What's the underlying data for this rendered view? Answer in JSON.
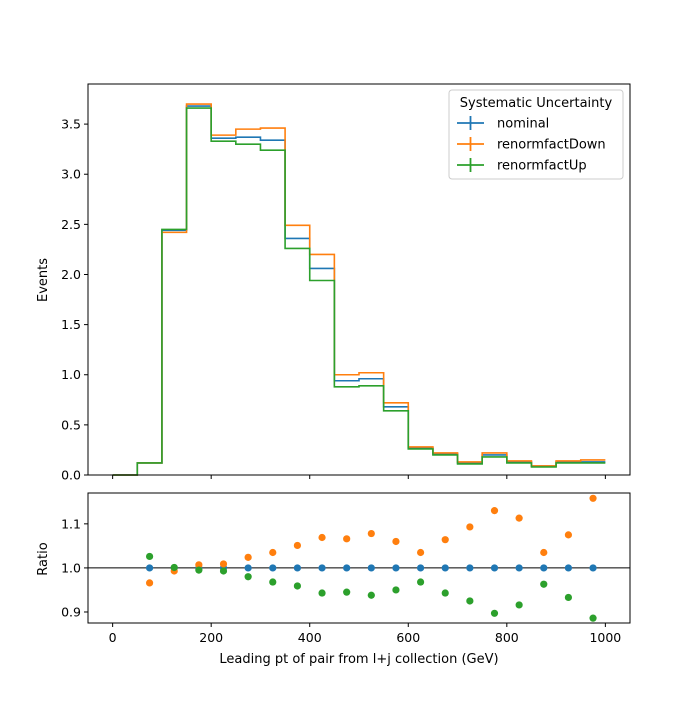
{
  "chart_data": [
    {
      "type": "line",
      "style": "step histogram",
      "xlabel": "",
      "ylabel": "Events",
      "xlim": [
        -50,
        1050
      ],
      "ylim": [
        0,
        3.9
      ],
      "x_ticks": [
        0,
        200,
        400,
        600,
        800,
        1000
      ],
      "y_ticks": [
        "0.0",
        "0.5",
        "1.0",
        "1.5",
        "2.0",
        "2.5",
        "3.0",
        "3.5"
      ],
      "grid": false,
      "legend": {
        "title": "Systematic Uncertainty",
        "placement": "top-right"
      },
      "bin_edges": [
        0,
        50,
        100,
        150,
        200,
        250,
        300,
        350,
        400,
        450,
        500,
        550,
        600,
        650,
        700,
        750,
        800,
        850,
        900,
        950,
        1000
      ],
      "series": [
        {
          "name": "nominal",
          "color": "#1f77b4",
          "values": [
            0.0,
            0.12,
            2.44,
            3.68,
            3.36,
            3.37,
            3.34,
            2.36,
            2.06,
            0.94,
            0.96,
            0.68,
            0.27,
            0.21,
            0.12,
            0.2,
            0.13,
            0.09,
            0.13,
            0.13
          ]
        },
        {
          "name": "renormfactDown",
          "color": "#ff7f0e",
          "values": [
            0.0,
            0.12,
            2.42,
            3.7,
            3.39,
            3.45,
            3.46,
            2.49,
            2.2,
            1.0,
            1.02,
            0.72,
            0.28,
            0.22,
            0.13,
            0.22,
            0.14,
            0.09,
            0.14,
            0.15
          ]
        },
        {
          "name": "renormfactUp",
          "color": "#2ca02c",
          "values": [
            0.0,
            0.12,
            2.45,
            3.66,
            3.33,
            3.3,
            3.24,
            2.26,
            1.94,
            0.88,
            0.89,
            0.64,
            0.26,
            0.2,
            0.11,
            0.18,
            0.12,
            0.08,
            0.12,
            0.12
          ]
        }
      ]
    },
    {
      "type": "scatter",
      "xlabel": "Leading pt of pair from l+j collection (GeV)",
      "ylabel": "Ratio",
      "xlim": [
        -50,
        1050
      ],
      "ylim": [
        0.875,
        1.17
      ],
      "x_ticks": [
        0,
        200,
        400,
        600,
        800,
        1000
      ],
      "y_ticks": [
        "0.9",
        "1.0",
        "1.1"
      ],
      "reference_line": 1.0,
      "grid": false,
      "x": [
        75,
        125,
        175,
        225,
        275,
        325,
        375,
        425,
        475,
        525,
        575,
        625,
        675,
        725,
        775,
        825,
        875,
        925,
        975
      ],
      "series": [
        {
          "name": "nominal",
          "color": "#1f77b4",
          "values": [
            1.0,
            1.0,
            1.0,
            1.0,
            1.0,
            1.0,
            1.0,
            1.0,
            1.0,
            1.0,
            1.0,
            1.0,
            1.0,
            1.0,
            1.0,
            1.0,
            1.0,
            1.0,
            1.0
          ]
        },
        {
          "name": "renormfactDown",
          "color": "#ff7f0e",
          "values": [
            0.966,
            0.993,
            1.007,
            1.009,
            1.024,
            1.035,
            1.051,
            1.069,
            1.066,
            1.078,
            1.06,
            1.035,
            1.064,
            1.093,
            1.13,
            1.113,
            1.035,
            1.075,
            1.158
          ]
        },
        {
          "name": "renormfactUp",
          "color": "#2ca02c",
          "values": [
            1.026,
            1.001,
            0.995,
            0.993,
            0.98,
            0.968,
            0.959,
            0.943,
            0.945,
            0.938,
            0.95,
            0.968,
            0.943,
            0.925,
            0.897,
            0.916,
            0.963,
            0.933,
            0.886
          ]
        }
      ]
    }
  ]
}
